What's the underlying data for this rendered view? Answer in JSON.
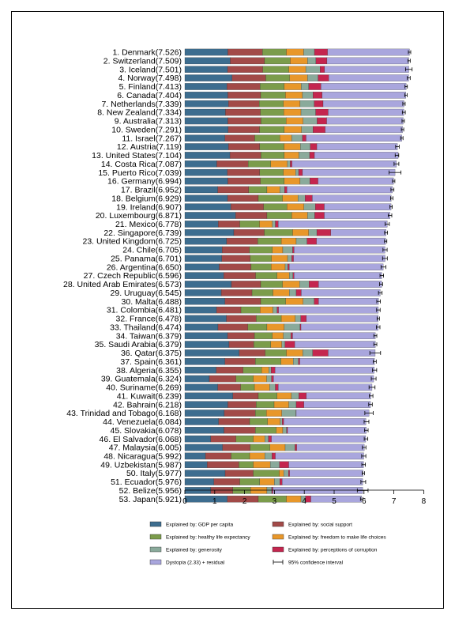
{
  "chart_data": {
    "type": "bar",
    "orientation": "horizontal",
    "stacked": true,
    "xlim": [
      0,
      8
    ],
    "xticks": [
      "0",
      "1",
      "2",
      "3",
      "4",
      "5",
      "6",
      "7",
      "8"
    ],
    "categories": [
      "1. Denmark(7.526)",
      "2. Switzerland(7.509)",
      "3. Iceland(7.501)",
      "4. Norway(7.498)",
      "5. Finland(7.413)",
      "6. Canada(7.404)",
      "7. Netherlands(7.339)",
      "8. New Zealand(7.334)",
      "9. Australia(7.313)",
      "10. Sweden(7.291)",
      "11. Israel(7.267)",
      "12. Austria(7.119)",
      "13. United States(7.104)",
      "14. Costa Rica(7.087)",
      "15. Puerto Rico(7.039)",
      "16. Germany(6.994)",
      "17. Brazil(6.952)",
      "18. Belgium(6.929)",
      "19. Ireland(6.907)",
      "20. Luxembourg(6.871)",
      "21. Mexico(6.778)",
      "22. Singapore(6.739)",
      "23. United Kingdom(6.725)",
      "24. Chile(6.705)",
      "25. Panama(6.701)",
      "26. Argentina(6.650)",
      "27. Czech Republic(6.596)",
      "28. United Arab Emirates(6.573)",
      "29. Uruguay(6.545)",
      "30. Malta(6.488)",
      "31. Colombia(6.481)",
      "32. France(6.478)",
      "33. Thailand(6.474)",
      "34. Taiwan(6.379)",
      "35. Saudi Arabia(6.379)",
      "36. Qatar(6.375)",
      "37. Spain(6.361)",
      "38. Algeria(6.355)",
      "39. Guatemala(6.324)",
      "40. Suriname(6.269)",
      "41. Kuwait(6.239)",
      "42. Bahrain(6.218)",
      "43. Trinidad and Tobago(6.168)",
      "44. Venezuela(6.084)",
      "45. Slovakia(6.078)",
      "46. El Salvador(6.068)",
      "47. Malaysia(6.005)",
      "48. Nicaragua(5.992)",
      "49. Uzbekistan(5.987)",
      "50. Italy(5.977)",
      "51. Ecuador(5.976)",
      "52. Belize(5.956)",
      "53. Japan(5.921)"
    ],
    "totals": [
      7.526,
      7.509,
      7.501,
      7.498,
      7.413,
      7.404,
      7.339,
      7.334,
      7.313,
      7.291,
      7.267,
      7.119,
      7.104,
      7.087,
      7.039,
      6.994,
      6.952,
      6.929,
      6.907,
      6.871,
      6.778,
      6.739,
      6.725,
      6.705,
      6.701,
      6.65,
      6.596,
      6.573,
      6.545,
      6.488,
      6.481,
      6.478,
      6.474,
      6.379,
      6.379,
      6.375,
      6.361,
      6.355,
      6.324,
      6.269,
      6.239,
      6.218,
      6.168,
      6.084,
      6.078,
      6.068,
      6.005,
      5.992,
      5.987,
      5.977,
      5.976,
      5.956,
      5.921
    ],
    "series": [
      {
        "name": "Explained by: GDP per capita",
        "color": "#3d6d8f",
        "values": [
          1.44,
          1.52,
          1.43,
          1.58,
          1.41,
          1.44,
          1.46,
          1.36,
          1.44,
          1.45,
          1.34,
          1.46,
          1.51,
          1.07,
          1.42,
          1.44,
          1.1,
          1.43,
          1.54,
          1.7,
          1.12,
          1.64,
          1.4,
          1.25,
          1.24,
          1.15,
          1.3,
          1.56,
          1.22,
          1.34,
          1.06,
          1.39,
          1.11,
          1.43,
          1.48,
          1.82,
          1.34,
          1.05,
          0.82,
          1.1,
          1.61,
          1.44,
          1.32,
          1.13,
          1.31,
          0.87,
          1.26,
          0.69,
          0.75,
          1.35,
          0.97,
          0.87,
          1.42
        ]
      },
      {
        "name": "Explained by: social support",
        "color": "#a24a48",
        "values": [
          1.16,
          1.15,
          1.18,
          1.13,
          1.11,
          1.1,
          1.03,
          1.17,
          1.11,
          1.05,
          1.0,
          1.05,
          1.04,
          1.05,
          1.09,
          1.09,
          1.04,
          1.03,
          1.1,
          1.05,
          0.72,
          1.02,
          1.04,
          0.91,
          0.95,
          1.07,
          1.07,
          0.98,
          1.03,
          1.2,
          0.82,
          1.0,
          1.0,
          0.9,
          0.83,
          0.87,
          1.02,
          0.9,
          0.89,
          0.77,
          0.85,
          0.95,
          1.04,
          1.04,
          1.05,
          0.84,
          0.93,
          0.86,
          1.06,
          0.94,
          0.87,
          0.74,
          1.04
        ]
      },
      {
        "name": "Explained by: healthy life expectancy",
        "color": "#7b9c4b",
        "values": [
          0.8,
          0.86,
          0.87,
          0.8,
          0.81,
          0.83,
          0.81,
          0.78,
          0.84,
          0.83,
          0.84,
          0.81,
          0.78,
          0.76,
          0.79,
          0.8,
          0.61,
          0.81,
          0.78,
          0.83,
          0.66,
          0.95,
          0.79,
          0.77,
          0.71,
          0.67,
          0.72,
          0.73,
          0.7,
          0.84,
          0.64,
          0.84,
          0.64,
          0.6,
          0.57,
          0.71,
          0.86,
          0.62,
          0.58,
          0.46,
          0.63,
          0.6,
          0.37,
          0.6,
          0.7,
          0.58,
          0.66,
          0.62,
          0.48,
          0.87,
          0.67,
          0.59,
          0.94
        ]
      },
      {
        "name": "Explained by: freedom to make life choices",
        "color": "#e8972a",
        "values": [
          0.58,
          0.58,
          0.57,
          0.6,
          0.57,
          0.57,
          0.56,
          0.58,
          0.57,
          0.58,
          0.4,
          0.55,
          0.49,
          0.55,
          0.41,
          0.53,
          0.43,
          0.52,
          0.57,
          0.53,
          0.43,
          0.54,
          0.5,
          0.35,
          0.54,
          0.47,
          0.41,
          0.57,
          0.55,
          0.58,
          0.43,
          0.47,
          0.58,
          0.37,
          0.37,
          0.55,
          0.41,
          0.24,
          0.45,
          0.51,
          0.48,
          0.49,
          0.52,
          0.42,
          0.22,
          0.39,
          0.51,
          0.51,
          0.57,
          0.15,
          0.49,
          0.55,
          0.49
        ]
      },
      {
        "name": "Explained by: generosity",
        "color": "#8aaa9b",
        "values": [
          0.36,
          0.28,
          0.48,
          0.35,
          0.25,
          0.35,
          0.47,
          0.49,
          0.47,
          0.38,
          0.36,
          0.33,
          0.36,
          0.1,
          0.1,
          0.33,
          0.16,
          0.24,
          0.38,
          0.24,
          0.1,
          0.27,
          0.36,
          0.33,
          0.14,
          0.09,
          0.12,
          0.32,
          0.23,
          0.37,
          0.14,
          0.18,
          0.53,
          0.25,
          0.1,
          0.33,
          0.17,
          0.08,
          0.16,
          0.19,
          0.25,
          0.25,
          0.47,
          0.07,
          0.13,
          0.12,
          0.33,
          0.24,
          0.31,
          0.16,
          0.18,
          0.16,
          0.15
        ]
      },
      {
        "name": "Explained by: perceptions of corruption",
        "color": "#c4264f",
        "values": [
          0.44,
          0.37,
          0.15,
          0.36,
          0.41,
          0.31,
          0.3,
          0.42,
          0.32,
          0.41,
          0.12,
          0.22,
          0.16,
          0.06,
          0.13,
          0.27,
          0.08,
          0.24,
          0.3,
          0.32,
          0.1,
          0.47,
          0.32,
          0.05,
          0.06,
          0.05,
          0.04,
          0.32,
          0.17,
          0.15,
          0.05,
          0.19,
          0.03,
          0.06,
          0.33,
          0.52,
          0.05,
          0.13,
          0.07,
          0.1,
          0.25,
          0.26,
          0.01,
          0.05,
          0.03,
          0.1,
          0.06,
          0.11,
          0.31,
          0.04,
          0.08,
          0.04,
          0.18
        ]
      },
      {
        "name": "Dystopia (2.33) + residual",
        "color": "#a9a6dd",
        "values": [
          2.746,
          2.739,
          2.821,
          2.678,
          2.853,
          2.804,
          2.709,
          2.534,
          2.563,
          2.591,
          3.207,
          2.699,
          2.804,
          3.497,
          3.099,
          2.534,
          3.532,
          2.639,
          2.237,
          2.201,
          3.648,
          1.849,
          2.315,
          3.045,
          3.066,
          3.143,
          2.936,
          2.113,
          2.645,
          2.008,
          3.341,
          2.408,
          2.584,
          2.769,
          2.699,
          1.575,
          2.501,
          3.325,
          3.354,
          3.139,
          2.159,
          2.228,
          2.438,
          2.754,
          2.638,
          3.158,
          2.259,
          2.962,
          2.507,
          2.457,
          2.696,
          3.006,
          1.701
        ]
      }
    ],
    "ci_label": "95% confidence interval",
    "ci_halfwidth": [
      0.04,
      0.04,
      0.11,
      0.05,
      0.04,
      0.04,
      0.04,
      0.05,
      0.04,
      0.04,
      0.04,
      0.06,
      0.06,
      0.08,
      0.2,
      0.04,
      0.05,
      0.04,
      0.04,
      0.06,
      0.07,
      0.05,
      0.04,
      0.07,
      0.08,
      0.08,
      0.06,
      0.05,
      0.06,
      0.06,
      0.06,
      0.04,
      0.06,
      0.05,
      0.05,
      0.18,
      0.05,
      0.07,
      0.08,
      0.1,
      0.06,
      0.06,
      0.14,
      0.08,
      0.06,
      0.06,
      0.06,
      0.07,
      0.06,
      0.04,
      0.08,
      0.18,
      0.04
    ],
    "legend": {
      "placement": "bottom",
      "order": [
        "Explained by: GDP per capita",
        "Explained by: social support",
        "Explained by: healthy life expectancy",
        "Explained by: freedom to make life choices",
        "Explained by: generosity",
        "Explained by: perceptions of corruption",
        "Dystopia (2.33) + residual",
        "95% confidence interval"
      ]
    },
    "grid": false,
    "title": "",
    "xlabel": "",
    "ylabel": ""
  }
}
